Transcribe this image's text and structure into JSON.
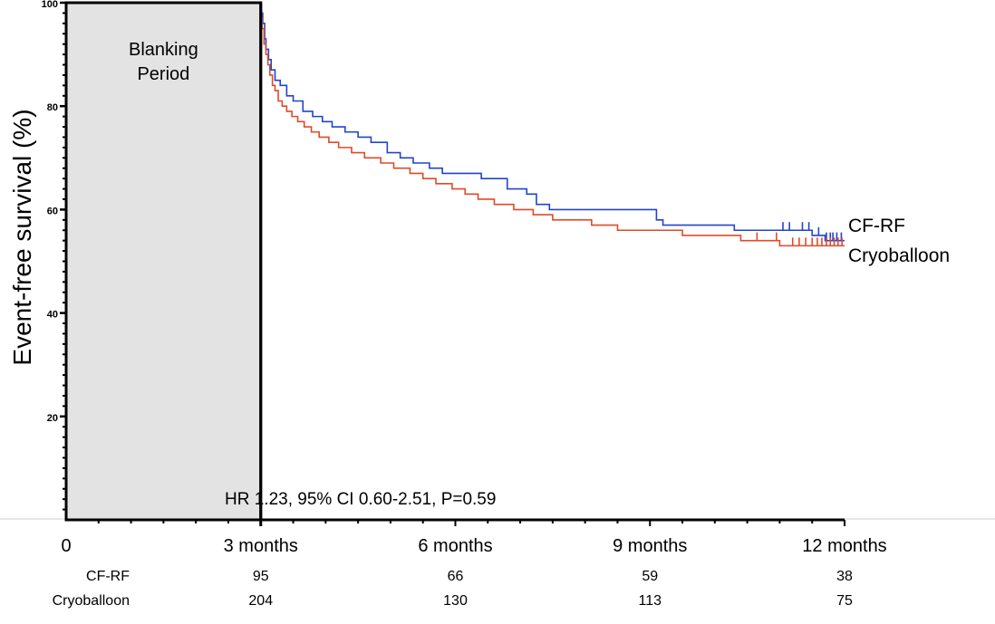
{
  "chart_data": {
    "type": "line",
    "title": "",
    "ylabel": "Event-free survival (%)",
    "xlabel": "",
    "x_unit": "months",
    "xlim": [
      0,
      12
    ],
    "ylim": [
      0,
      100
    ],
    "x_ticks": [
      {
        "value": 0,
        "label": "0"
      },
      {
        "value": 3,
        "label": "3 months"
      },
      {
        "value": 6,
        "label": "6 months"
      },
      {
        "value": 9,
        "label": "9 months"
      },
      {
        "value": 12,
        "label": "12 months"
      }
    ],
    "y_ticks": [
      {
        "value": 20,
        "label": "20"
      },
      {
        "value": 40,
        "label": "40"
      },
      {
        "value": 60,
        "label": "60"
      },
      {
        "value": 80,
        "label": "80"
      },
      {
        "value": 100,
        "label": "100"
      }
    ],
    "blanking": {
      "x_start": 0,
      "x_end": 3,
      "label_line1": "Blanking",
      "label_line2": "Period",
      "fill": "#e3e3e3"
    },
    "annotation": "HR 1.23, 95% CI 0.60-2.51, P=0.59",
    "series": [
      {
        "name": "CF-RF",
        "color": "#2244cc",
        "x": [
          3.0,
          3.03,
          3.06,
          3.08,
          3.12,
          3.16,
          3.22,
          3.3,
          3.4,
          3.5,
          3.65,
          3.8,
          3.95,
          4.1,
          4.3,
          4.5,
          4.7,
          4.95,
          5.15,
          5.35,
          5.6,
          5.8,
          6.05,
          6.4,
          6.8,
          7.1,
          7.25,
          7.45,
          8.0,
          8.6,
          9.1,
          9.2,
          9.8,
          10.3,
          10.6,
          10.8,
          11.5,
          11.7,
          12.0
        ],
        "y": [
          98,
          96,
          93,
          91,
          89,
          87,
          85,
          84,
          82,
          81,
          79,
          78,
          77,
          76,
          75,
          74,
          73,
          71,
          70,
          69,
          68,
          67,
          67,
          66,
          64,
          63,
          61,
          60,
          60,
          60,
          58,
          57,
          57,
          56,
          56,
          56,
          55,
          54,
          54
        ],
        "censor_x": [
          11.05,
          11.15,
          11.35,
          11.45,
          11.6,
          11.72,
          11.78,
          11.82,
          11.88,
          11.95
        ],
        "at_risk": [
          "95",
          "66",
          "59",
          "38"
        ]
      },
      {
        "name": "Cryoballoon",
        "color": "#e04a2a",
        "x": [
          3.0,
          3.02,
          3.05,
          3.08,
          3.11,
          3.14,
          3.18,
          3.22,
          3.27,
          3.33,
          3.4,
          3.48,
          3.57,
          3.67,
          3.78,
          3.9,
          4.05,
          4.2,
          4.4,
          4.6,
          4.85,
          5.05,
          5.3,
          5.5,
          5.7,
          5.95,
          6.15,
          6.35,
          6.6,
          6.9,
          7.2,
          7.5,
          7.8,
          8.1,
          8.5,
          9.0,
          9.5,
          10.0,
          10.4,
          10.7,
          11.0,
          11.4,
          12.0
        ],
        "y": [
          97,
          95,
          92,
          90,
          88,
          86,
          84,
          83,
          81,
          80,
          79,
          78,
          77,
          76,
          75,
          74,
          73,
          72,
          71,
          70,
          69,
          68,
          67,
          66,
          65,
          64,
          63,
          62,
          61,
          60,
          59,
          58,
          58,
          57,
          56,
          56,
          55,
          55,
          54,
          54,
          53,
          53,
          53
        ],
        "censor_x": [
          10.65,
          10.95,
          11.2,
          11.3,
          11.4,
          11.5,
          11.58,
          11.65,
          11.72,
          11.78,
          11.84,
          11.9,
          11.96
        ],
        "at_risk": [
          "204",
          "130",
          "113",
          "75"
        ]
      }
    ],
    "at_risk_times": [
      3,
      6,
      9,
      12
    ]
  }
}
